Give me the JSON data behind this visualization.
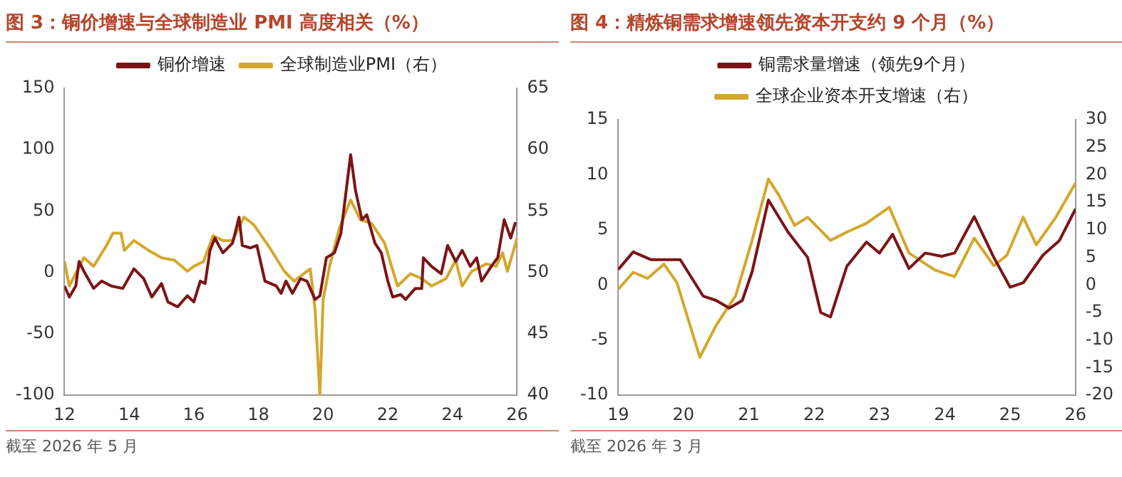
{
  "chart_data": [
    {
      "type": "line",
      "title": "图 3：铜价增速与全球制造业 PMI 高度相关（%）",
      "annotations": [
        "截至 2026 年 5 月"
      ],
      "legend": "top",
      "xlim": [
        12,
        26
      ],
      "xticks": [
        12,
        14,
        16,
        18,
        20,
        22,
        24,
        26
      ],
      "ylim": [
        -100,
        150
      ],
      "yticks": [
        -100,
        -50,
        0,
        50,
        100,
        150
      ],
      "y2lim": [
        40,
        65
      ],
      "y2ticks": [
        40,
        45,
        50,
        55,
        60,
        65
      ],
      "series": [
        {
          "name": "铜价增速",
          "color": "#7b1416",
          "x": [
            12.0,
            12.15,
            12.35,
            12.45,
            12.6,
            12.9,
            13.15,
            13.45,
            13.8,
            14.15,
            14.45,
            14.7,
            15.0,
            15.2,
            15.5,
            15.8,
            16.0,
            16.2,
            16.35,
            16.5,
            16.65,
            16.9,
            17.2,
            17.4,
            17.5,
            17.75,
            17.95,
            18.2,
            18.55,
            18.7,
            18.85,
            19.05,
            19.3,
            19.5,
            19.75,
            19.9,
            20.1,
            20.35,
            20.55,
            20.85,
            21.0,
            21.2,
            21.35,
            21.6,
            21.8,
            22.0,
            22.15,
            22.4,
            22.55,
            22.85,
            23.05,
            23.1,
            23.35,
            23.65,
            23.85,
            24.1,
            24.3,
            24.55,
            24.75,
            24.9,
            25.2,
            25.4,
            25.6,
            25.8,
            25.95
          ],
          "values": [
            -11,
            -20,
            -11,
            9,
            1,
            -13,
            -7,
            -11,
            -13,
            3,
            -5,
            -20,
            -9,
            -24,
            -28,
            -19,
            -24,
            -7,
            -9,
            18,
            28,
            16,
            24,
            45,
            22,
            20,
            22,
            -7,
            -11,
            -17,
            -7,
            -17,
            -5,
            -7,
            -22,
            -19,
            12,
            16,
            32,
            96,
            67,
            43,
            47,
            24,
            16,
            -7,
            -20,
            -18,
            -22,
            -13,
            -13,
            12,
            5,
            -1,
            22,
            9,
            18,
            5,
            12,
            -7,
            5,
            12,
            43,
            28,
            41
          ]
        },
        {
          "name": "全球制造业PMI（右）",
          "color": "#d4a72c",
          "axis": "y2",
          "x": [
            12.0,
            12.15,
            12.6,
            12.9,
            13.3,
            13.5,
            13.75,
            13.85,
            14.15,
            14.6,
            15.0,
            15.4,
            15.8,
            16.0,
            16.3,
            16.6,
            16.9,
            17.2,
            17.55,
            17.85,
            18.35,
            18.8,
            19.1,
            19.4,
            19.6,
            19.75,
            19.9,
            20.0,
            20.2,
            20.5,
            20.85,
            21.15,
            21.5,
            21.9,
            22.3,
            22.7,
            23.05,
            23.35,
            23.8,
            24.1,
            24.3,
            24.6,
            25.05,
            25.35,
            25.55,
            25.7,
            26.0
          ],
          "values": [
            50.9,
            48.9,
            51.2,
            50.5,
            52.2,
            53.2,
            53.2,
            51.8,
            52.6,
            51.8,
            51.2,
            51.0,
            50.1,
            50.5,
            50.9,
            53.0,
            52.6,
            52.6,
            54.5,
            53.9,
            52.0,
            50.1,
            49.3,
            49.9,
            50.3,
            47.0,
            40.0,
            47.8,
            50.5,
            53.6,
            55.9,
            54.3,
            54.0,
            52.4,
            48.9,
            49.9,
            49.5,
            48.9,
            49.5,
            51.0,
            48.9,
            50.1,
            50.7,
            50.5,
            51.6,
            50.1,
            52.8
          ]
        }
      ]
    },
    {
      "type": "line",
      "title": "图 4：精炼铜需求增速领先资本开支约 9 个月（%）",
      "annotations": [
        "截至 2026 年 3 月"
      ],
      "legend": "top",
      "xlim": [
        19,
        26
      ],
      "xticks": [
        19,
        20,
        21,
        22,
        23,
        24,
        25,
        26
      ],
      "ylim": [
        -10,
        15
      ],
      "yticks": [
        -10,
        -5,
        0,
        5,
        10,
        15
      ],
      "y2lim": [
        -20,
        30
      ],
      "y2ticks": [
        -20,
        -15,
        -10,
        -5,
        0,
        5,
        10,
        15,
        20,
        25,
        30
      ],
      "series": [
        {
          "name": "铜需求量增速（领先9个月）",
          "color": "#7b1416",
          "x": [
            19.0,
            19.23,
            19.5,
            19.8,
            19.95,
            20.3,
            20.5,
            20.7,
            20.9,
            21.05,
            21.3,
            21.6,
            21.9,
            22.1,
            22.25,
            22.5,
            22.8,
            23.0,
            23.2,
            23.45,
            23.7,
            23.95,
            24.15,
            24.45,
            24.75,
            25.0,
            25.2,
            25.5,
            25.75,
            26.0
          ],
          "values": [
            1.4,
            3.0,
            2.3,
            2.3,
            2.3,
            -1.0,
            -1.4,
            -2.1,
            -1.4,
            1.2,
            7.7,
            4.8,
            2.5,
            -2.5,
            -2.9,
            1.7,
            3.9,
            2.9,
            4.6,
            1.5,
            2.9,
            2.6,
            2.9,
            6.2,
            2.5,
            -0.2,
            0.2,
            2.7,
            4.0,
            6.9
          ]
        },
        {
          "name": "全球企业资本开支增速（右）",
          "color": "#d4a72c",
          "axis": "y2",
          "x": [
            19.0,
            19.23,
            19.45,
            19.7,
            19.9,
            20.25,
            20.5,
            20.8,
            21.05,
            21.3,
            21.45,
            21.7,
            21.9,
            22.25,
            22.5,
            22.8,
            23.15,
            23.45,
            23.85,
            24.15,
            24.45,
            24.75,
            24.95,
            25.2,
            25.4,
            25.7,
            26.0
          ],
          "values": [
            -0.8,
            2.3,
            1.2,
            3.8,
            0.4,
            -13.1,
            -7.3,
            -1.9,
            8.1,
            19.2,
            16.5,
            10.8,
            12.3,
            8.1,
            9.6,
            11.2,
            14.1,
            5.8,
            2.7,
            1.5,
            8.5,
            3.5,
            5.4,
            12.3,
            7.3,
            12.3,
            18.5
          ]
        }
      ]
    }
  ]
}
